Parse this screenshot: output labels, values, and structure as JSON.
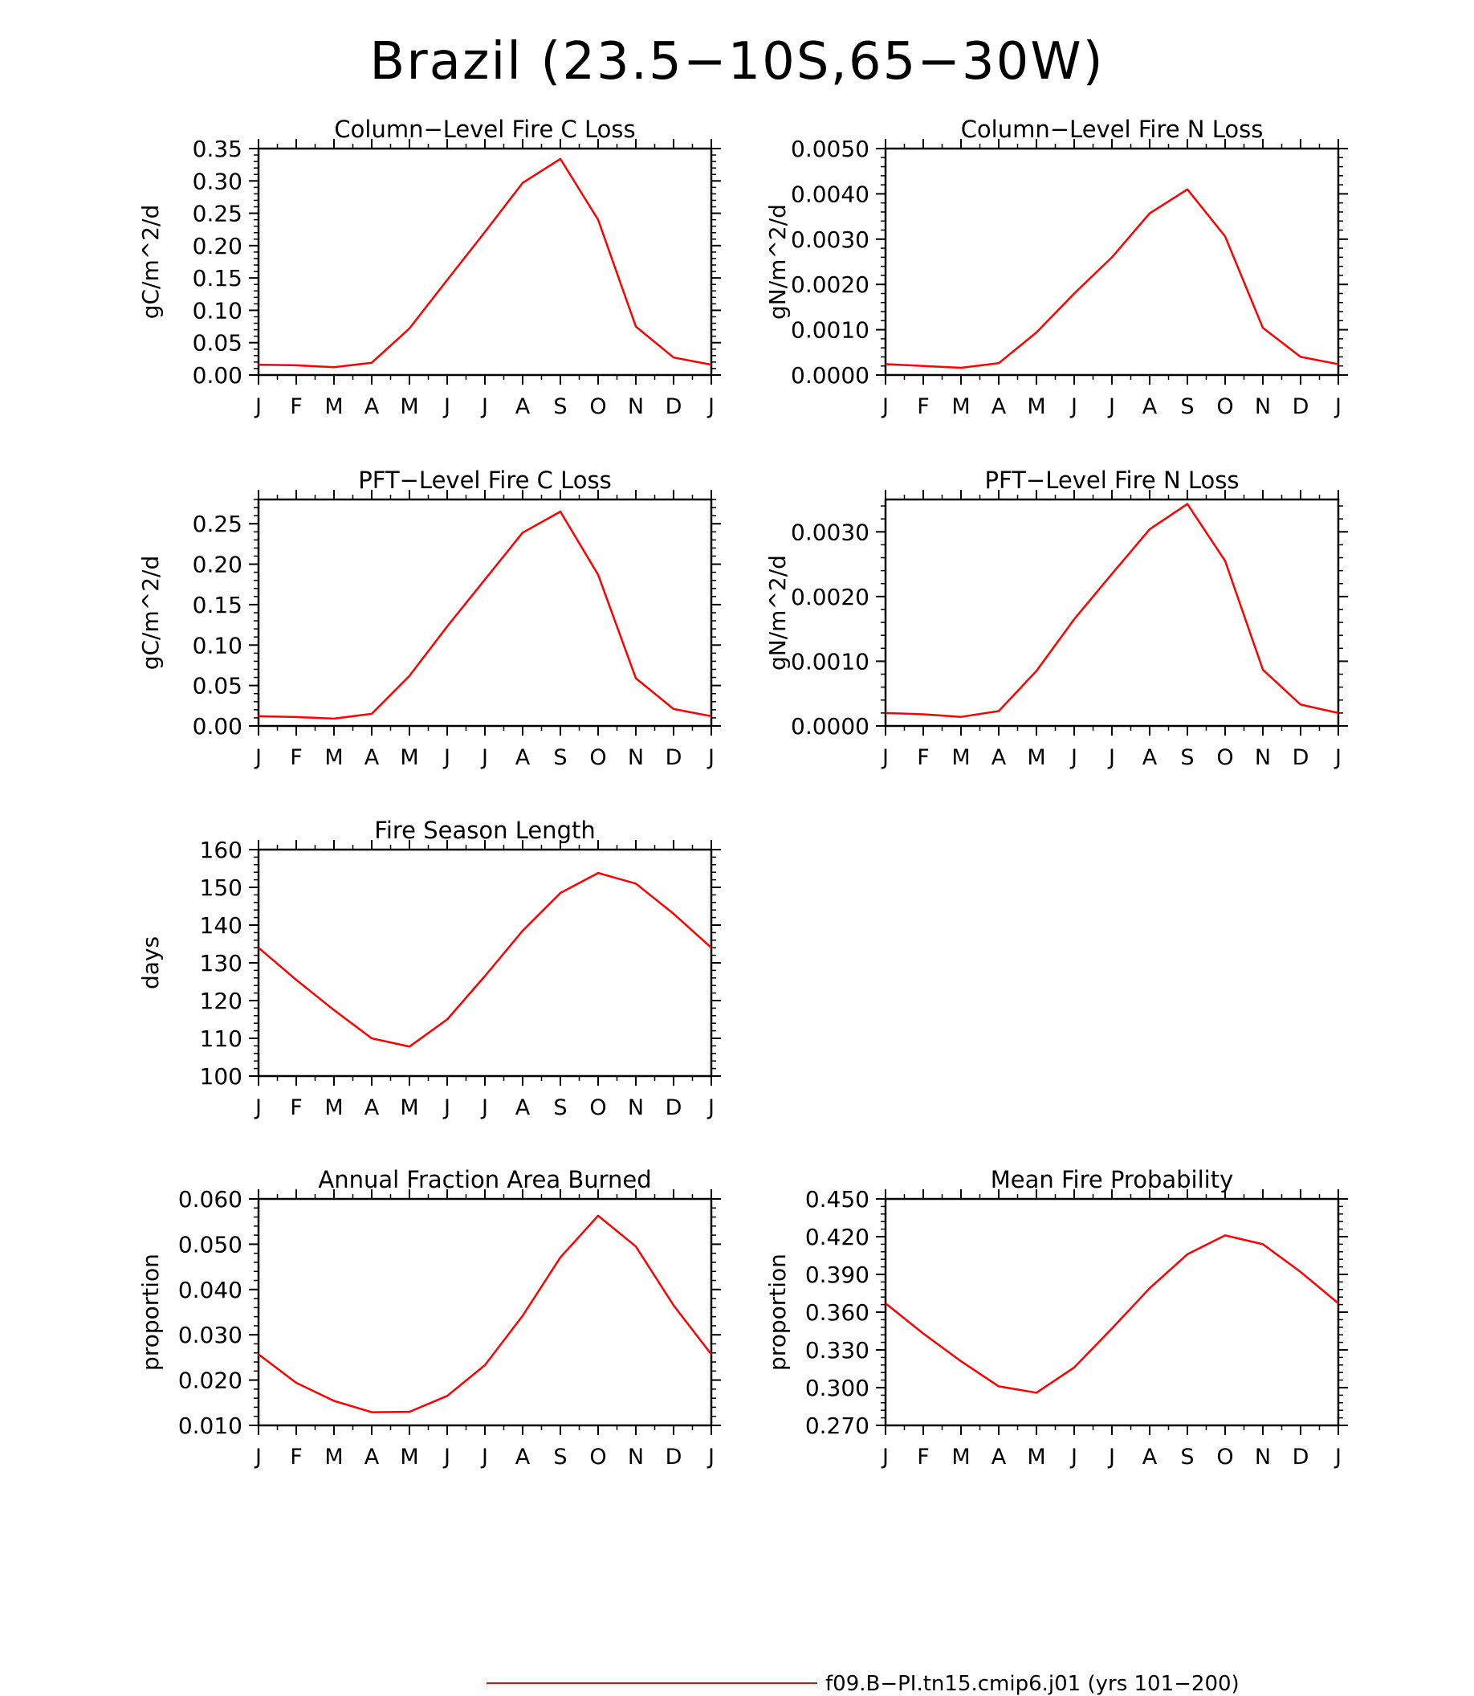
{
  "page": {
    "title": "Brazil (23.5−10S,65−30W)",
    "legend_line_color": "#ff0000",
    "legend_label": "f09.B−PI.tn15.cmip6.j01 (yrs 101−200)"
  },
  "chart_data": [
    {
      "type": "line",
      "title": "Column−Level Fire C Loss",
      "ylabel": "gC/m^2/d",
      "xlabel": "",
      "categories": [
        "J",
        "F",
        "M",
        "A",
        "M",
        "J",
        "J",
        "A",
        "S",
        "O",
        "N",
        "D",
        "J"
      ],
      "ylim": [
        0,
        0.35
      ],
      "yticks": [
        "0.00",
        "0.05",
        "0.10",
        "0.15",
        "0.20",
        "0.25",
        "0.30",
        "0.35"
      ],
      "series": [
        {
          "color": "#ff0000",
          "values": [
            0.016,
            0.015,
            0.012,
            0.019,
            0.072,
            0.147,
            0.221,
            0.297,
            0.334,
            0.24,
            0.075,
            0.027,
            0.016
          ]
        }
      ]
    },
    {
      "type": "line",
      "title": "Column−Level Fire N Loss",
      "ylabel": "gN/m^2/d",
      "xlabel": "",
      "categories": [
        "J",
        "F",
        "M",
        "A",
        "M",
        "J",
        "J",
        "A",
        "S",
        "O",
        "N",
        "D",
        "J"
      ],
      "ylim": [
        0,
        0.005
      ],
      "yticks": [
        "0.0000",
        "0.0010",
        "0.0020",
        "0.0030",
        "0.0040",
        "0.0050"
      ],
      "series": [
        {
          "color": "#ff0000",
          "values": [
            0.00024,
            0.0002,
            0.00016,
            0.00026,
            0.00094,
            0.0018,
            0.0026,
            0.00357,
            0.0041,
            0.00306,
            0.00104,
            0.0004,
            0.00024
          ]
        }
      ]
    },
    {
      "type": "line",
      "title": "PFT−Level Fire C Loss",
      "ylabel": "gC/m^2/d",
      "xlabel": "",
      "categories": [
        "J",
        "F",
        "M",
        "A",
        "M",
        "J",
        "J",
        "A",
        "S",
        "O",
        "N",
        "D",
        "J"
      ],
      "ylim": [
        0,
        0.28
      ],
      "yticks": [
        "0.00",
        "0.05",
        "0.10",
        "0.15",
        "0.20",
        "0.25"
      ],
      "series": [
        {
          "color": "#ff0000",
          "values": [
            0.012,
            0.011,
            0.009,
            0.015,
            0.062,
            0.123,
            0.181,
            0.239,
            0.265,
            0.187,
            0.059,
            0.021,
            0.012
          ]
        }
      ]
    },
    {
      "type": "line",
      "title": "PFT−Level Fire N Loss",
      "ylabel": "gN/m^2/d",
      "xlabel": "",
      "categories": [
        "J",
        "F",
        "M",
        "A",
        "M",
        "J",
        "J",
        "A",
        "S",
        "O",
        "N",
        "D",
        "J"
      ],
      "ylim": [
        0,
        0.0035
      ],
      "yticks": [
        "0.0000",
        "0.0010",
        "0.0020",
        "0.0030"
      ],
      "series": [
        {
          "color": "#ff0000",
          "values": [
            0.0002,
            0.00018,
            0.00014,
            0.00023,
            0.00085,
            0.00165,
            0.00235,
            0.00304,
            0.00343,
            0.00255,
            0.00087,
            0.00033,
            0.0002
          ]
        }
      ]
    },
    {
      "type": "line",
      "title": "Fire Season Length",
      "ylabel": "days",
      "xlabel": "",
      "categories": [
        "J",
        "F",
        "M",
        "A",
        "M",
        "J",
        "J",
        "A",
        "S",
        "O",
        "N",
        "D",
        "J"
      ],
      "ylim": [
        100,
        160
      ],
      "yticks": [
        "100",
        "110",
        "120",
        "130",
        "140",
        "150",
        "160"
      ],
      "series": [
        {
          "color": "#ff0000",
          "values": [
            134,
            125.5,
            117.5,
            110,
            107.8,
            115,
            126.5,
            138.5,
            148.5,
            153.8,
            151,
            143,
            134
          ]
        }
      ]
    },
    {
      "type": "line",
      "title": "Annual Fraction Area Burned",
      "ylabel": "proportion",
      "xlabel": "",
      "categories": [
        "J",
        "F",
        "M",
        "A",
        "M",
        "J",
        "J",
        "A",
        "S",
        "O",
        "N",
        "D",
        "J"
      ],
      "ylim": [
        0.01,
        0.06
      ],
      "yticks": [
        "0.010",
        "0.020",
        "0.030",
        "0.040",
        "0.050",
        "0.060"
      ],
      "series": [
        {
          "color": "#ff0000",
          "values": [
            0.0257,
            0.0194,
            0.0154,
            0.0129,
            0.013,
            0.0165,
            0.0233,
            0.0342,
            0.0471,
            0.0563,
            0.0495,
            0.0365,
            0.0257
          ]
        }
      ]
    },
    {
      "type": "line",
      "title": "Mean Fire Probability",
      "ylabel": "proportion",
      "xlabel": "",
      "categories": [
        "J",
        "F",
        "M",
        "A",
        "M",
        "J",
        "J",
        "A",
        "S",
        "O",
        "N",
        "D",
        "J"
      ],
      "ylim": [
        0.27,
        0.45
      ],
      "yticks": [
        "0.270",
        "0.300",
        "0.330",
        "0.360",
        "0.390",
        "0.420",
        "0.450"
      ],
      "series": [
        {
          "color": "#ff0000",
          "values": [
            0.367,
            0.343,
            0.321,
            0.301,
            0.296,
            0.316,
            0.347,
            0.379,
            0.406,
            0.421,
            0.414,
            0.392,
            0.367
          ]
        }
      ]
    }
  ]
}
